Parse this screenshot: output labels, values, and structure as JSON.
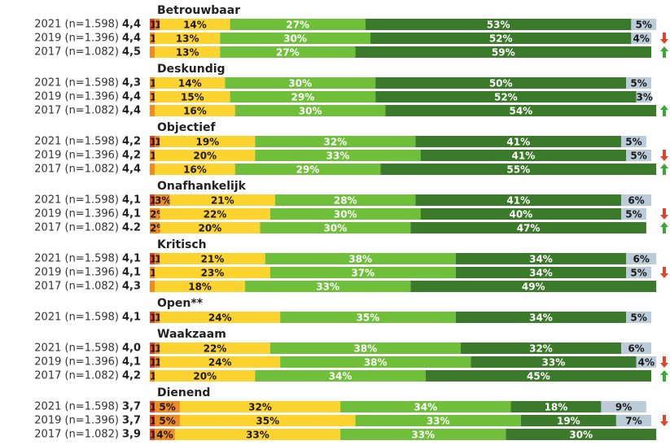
{
  "chart_data": {
    "type": "grouped_stacked_bar",
    "xlim": [
      0,
      100
    ],
    "colors": [
      "#e0452b",
      "#f08a24",
      "#fdd32f",
      "#6fbf3a",
      "#3b7a2a",
      "#bccbd8"
    ],
    "trend_colors": {
      "up": "#3aa935",
      "down": "#e0452b"
    },
    "groups": [
      {
        "title": "Betrouwbaar",
        "rows": [
          {
            "label": "2021 (n=1.598)",
            "score": "4,4",
            "values": [
              1,
              1,
              14,
              27,
              53,
              5
            ],
            "value_labels": [
              "1%",
              "1%",
              "14%",
              "27%",
              "53%",
              "5%"
            ],
            "trend": null
          },
          {
            "label": "2019 (n=1.396)",
            "score": "4,4",
            "values": [
              null,
              1,
              13,
              30,
              52,
              4
            ],
            "value_labels": [
              null,
              "1%",
              "13%",
              "30%",
              "52%",
              "4%"
            ],
            "trend": "down"
          },
          {
            "label": "2017 (n=1.082)",
            "score": "4,5",
            "values": [
              null,
              1,
              13,
              27,
              59,
              null
            ],
            "value_labels": [
              null,
              null,
              "13%",
              "27%",
              "59%",
              null
            ],
            "trend": "up"
          }
        ]
      },
      {
        "title": "Deskundig",
        "rows": [
          {
            "label": "2021 (n=1.598)",
            "score": "4,3",
            "values": [
              null,
              1,
              14,
              30,
              50,
              5
            ],
            "value_labels": [
              null,
              "1%",
              "14%",
              "30%",
              "50%",
              "5%"
            ],
            "trend": null
          },
          {
            "label": "2019 (n=1.396)",
            "score": "4,4",
            "values": [
              null,
              1,
              15,
              29,
              52,
              3
            ],
            "value_labels": [
              null,
              "1%",
              "15%",
              "29%",
              "52%",
              "3%"
            ],
            "trend": null
          },
          {
            "label": "2017 (n=1.082)",
            "score": "4,4",
            "values": [
              null,
              1,
              16,
              30,
              54,
              null
            ],
            "value_labels": [
              null,
              null,
              "16%",
              "30%",
              "54%",
              null
            ],
            "trend": "up"
          }
        ]
      },
      {
        "title": "Objectief",
        "rows": [
          {
            "label": "2021 (n=1.598)",
            "score": "4,2",
            "values": [
              1,
              1,
              19,
              32,
              41,
              5
            ],
            "value_labels": [
              "1%",
              "1%",
              "19%",
              "32%",
              "41%",
              "5%"
            ],
            "trend": null
          },
          {
            "label": "2019 (n=1.396)",
            "score": "4,2",
            "values": [
              null,
              1,
              20,
              33,
              41,
              5
            ],
            "value_labels": [
              null,
              "1%",
              "20%",
              "33%",
              "41%",
              "5%"
            ],
            "trend": "down"
          },
          {
            "label": "2017 (n=1.082)",
            "score": "4,4",
            "values": [
              null,
              1,
              16,
              29,
              55,
              null
            ],
            "value_labels": [
              null,
              null,
              "16%",
              "29%",
              "55%",
              null
            ],
            "trend": "up"
          }
        ]
      },
      {
        "title": "Onafhankelijk",
        "rows": [
          {
            "label": "2021 (n=1.598)",
            "score": "4,1",
            "values": [
              1,
              3,
              21,
              28,
              41,
              6
            ],
            "value_labels": [
              "1%",
              "3%",
              "21%",
              "28%",
              "41%",
              "6%"
            ],
            "trend": null
          },
          {
            "label": "2019 (n=1.396)",
            "score": "4,1",
            "values": [
              null,
              2,
              22,
              30,
              40,
              5
            ],
            "value_labels": [
              null,
              "2%",
              "22%",
              "30%",
              "40%",
              "5%"
            ],
            "trend": "down"
          },
          {
            "label": "2017 (n=1.082)",
            "score": "4.2",
            "values": [
              null,
              2,
              20,
              30,
              47,
              null
            ],
            "value_labels": [
              null,
              "2%",
              "20%",
              "30%",
              "47%",
              null
            ],
            "trend": "up"
          }
        ]
      },
      {
        "title": "Kritisch",
        "rows": [
          {
            "label": "2021 (n=1.598)",
            "score": "4,1",
            "values": [
              1,
              1,
              21,
              38,
              34,
              6
            ],
            "value_labels": [
              "1%",
              "1%",
              "21%",
              "38%",
              "34%",
              "6%"
            ],
            "trend": null
          },
          {
            "label": "2019 (n=1.396)",
            "score": "4,1",
            "values": [
              null,
              1,
              23,
              37,
              34,
              5
            ],
            "value_labels": [
              null,
              "1%",
              "23%",
              "37%",
              "34%",
              "5%"
            ],
            "trend": "down"
          },
          {
            "label": "2017 (n=1.082)",
            "score": "4,3",
            "values": [
              null,
              1,
              18,
              33,
              49,
              null
            ],
            "value_labels": [
              null,
              null,
              "18%",
              "33%",
              "49%",
              null
            ],
            "trend": null
          }
        ]
      },
      {
        "title": "Open**",
        "rows": [
          {
            "label": "2021 (n=1.598)",
            "score": "4,1",
            "values": [
              1,
              1,
              24,
              35,
              34,
              5
            ],
            "value_labels": [
              "1%",
              "1%",
              "24%",
              "35%",
              "34%",
              "5%"
            ],
            "trend": null
          }
        ]
      },
      {
        "title": "Waakzaam",
        "rows": [
          {
            "label": "2021 (n=1.598)",
            "score": "4,0",
            "values": [
              1,
              1,
              22,
              38,
              32,
              6
            ],
            "value_labels": [
              "1%",
              "1%",
              "22%",
              "38%",
              "32%",
              "6%"
            ],
            "trend": null
          },
          {
            "label": "2019 (n=1.396)",
            "score": "4,1",
            "values": [
              1,
              1,
              24,
              38,
              33,
              4
            ],
            "value_labels": [
              "1%",
              "1%",
              "24%",
              "38%",
              "33%",
              "4%"
            ],
            "trend": "down"
          },
          {
            "label": "2017 (n=1.082)",
            "score": "4,2",
            "values": [
              null,
              1,
              20,
              34,
              45,
              null
            ],
            "value_labels": [
              null,
              "1%",
              "20%",
              "34%",
              "45%",
              null
            ],
            "trend": "up"
          }
        ]
      },
      {
        "title": "Dienend",
        "rows": [
          {
            "label": "2021 (n=1.598)",
            "score": "3,7",
            "values": [
              1,
              5,
              32,
              34,
              18,
              9
            ],
            "value_labels": [
              "1%",
              "5%",
              "32%",
              "34%",
              "18%",
              "9%"
            ],
            "trend": null
          },
          {
            "label": "2019 (n=1.396)",
            "score": "3,7",
            "values": [
              1,
              5,
              35,
              33,
              19,
              7
            ],
            "value_labels": [
              "1%",
              "5%",
              "35%",
              "33%",
              "19%",
              "7%"
            ],
            "trend": "down"
          },
          {
            "label": "2017 (n=1.082)",
            "score": "3,9",
            "values": [
              1,
              4,
              33,
              33,
              30,
              null
            ],
            "value_labels": [
              "1%",
              "4%",
              "33%",
              "33%",
              "30%",
              null
            ],
            "trend": null
          }
        ]
      }
    ]
  }
}
